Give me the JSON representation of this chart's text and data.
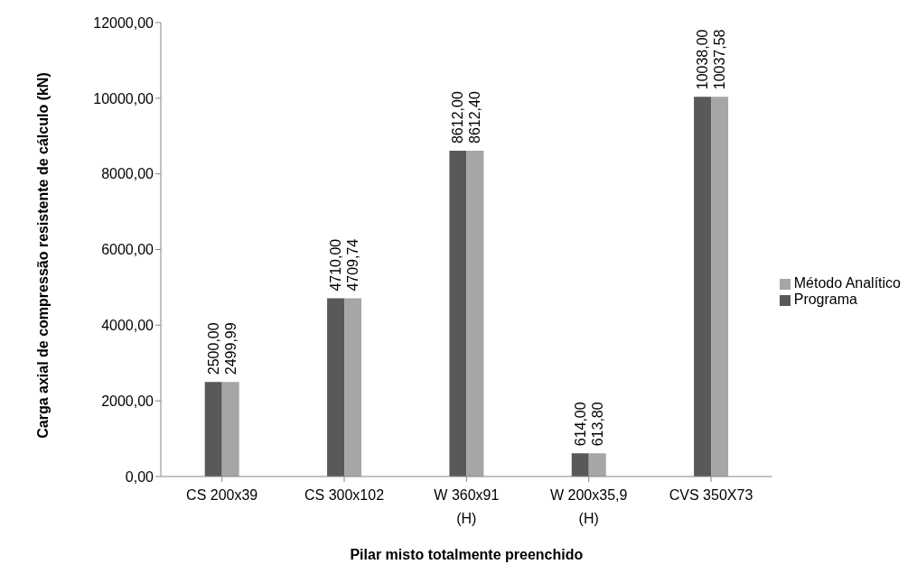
{
  "chart_data": {
    "type": "bar",
    "xlabel": "Pilar misto totalmente preenchido",
    "ylabel": "Carga axial de compressão resistente de cálculo (kN)",
    "categories": [
      "CS 200x39",
      "CS 300x102",
      "W 360x91 (H)",
      "W 200x35,9 (H)",
      "CVS 350X73"
    ],
    "series": [
      {
        "name": "Programa",
        "color": "#595959",
        "values": [
          2500,
          4710,
          8612,
          614,
          10038
        ],
        "value_labels": [
          "2500,00",
          "4710,00",
          "8612,00",
          "614,00",
          "10038,00"
        ]
      },
      {
        "name": "Método Analítico",
        "color": "#a6a6a6",
        "values": [
          2499.99,
          4709.74,
          8612.4,
          613.8,
          10037.58
        ],
        "value_labels": [
          "2499,99",
          "4709,74",
          "8612,40",
          "613,80",
          "10037,58"
        ]
      }
    ],
    "ylim": [
      0,
      12000
    ],
    "yticks": [
      {
        "value": 0,
        "label": "0,00"
      },
      {
        "value": 2000,
        "label": "2000,00"
      },
      {
        "value": 4000,
        "label": "4000,00"
      },
      {
        "value": 6000,
        "label": "6000,00"
      },
      {
        "value": 8000,
        "label": "8000,00"
      },
      {
        "value": 10000,
        "label": "10000,00"
      },
      {
        "value": 12000,
        "label": "12000,00"
      }
    ],
    "grid": false,
    "legend": "right"
  }
}
